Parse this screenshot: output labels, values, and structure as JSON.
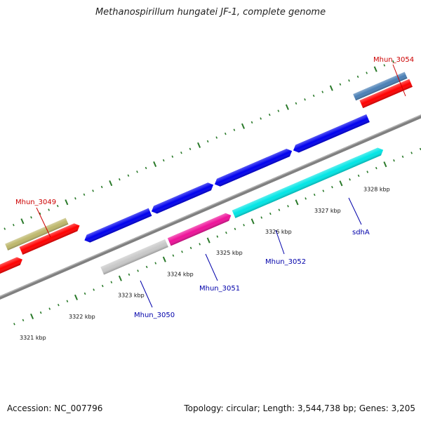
{
  "title": "Methanospirillum hungatei JF-1, complete genome",
  "footer": {
    "accession": "Accession: NC_007796",
    "summary": "Topology: circular; Length: 3,544,738 bp; Genes: 3,205"
  },
  "colors": {
    "backbone": "#808080",
    "tick": "#2a7a2a",
    "label_red": "#cc0000",
    "label_blue": "#0000aa"
  },
  "kbp_labels": [
    "3321 kbp",
    "3322 kbp",
    "3323 kbp",
    "3324 kbp",
    "3325 kbp",
    "3326 kbp",
    "3327 kbp",
    "3328 kbp"
  ],
  "gene_labels": [
    {
      "id": "mhun3049",
      "text": "Mhun_3049",
      "color": "red"
    },
    {
      "id": "mhun3050",
      "text": "Mhun_3050",
      "color": "blue"
    },
    {
      "id": "mhun3051",
      "text": "Mhun_3051",
      "color": "blue"
    },
    {
      "id": "mhun3052",
      "text": "Mhun_3052",
      "color": "blue"
    },
    {
      "id": "sdha",
      "text": "sdhA",
      "color": "blue"
    },
    {
      "id": "mhun3054",
      "text": "Mhun_3054",
      "color": "red"
    }
  ],
  "features": [
    {
      "id": "f-red-1",
      "color": "#ff0000"
    },
    {
      "id": "f-red-2",
      "color": "#ff0000"
    },
    {
      "id": "f-red-3",
      "color": "#ff0000"
    },
    {
      "id": "f-olive",
      "color": "#bdb76b"
    },
    {
      "id": "f-blue-1",
      "color": "#0000ee"
    },
    {
      "id": "f-gray",
      "color": "#c8c8c8"
    },
    {
      "id": "f-blue-2",
      "color": "#0000ee"
    },
    {
      "id": "f-magenta",
      "color": "#ee1199"
    },
    {
      "id": "f-blue-3",
      "color": "#0000ee"
    },
    {
      "id": "f-cyan",
      "color": "#00e5e5"
    },
    {
      "id": "f-blue-4",
      "color": "#0000ee"
    },
    {
      "id": "f-steel",
      "color": "#4a7fb5"
    },
    {
      "id": "f-red-4",
      "color": "#ff0000"
    }
  ]
}
